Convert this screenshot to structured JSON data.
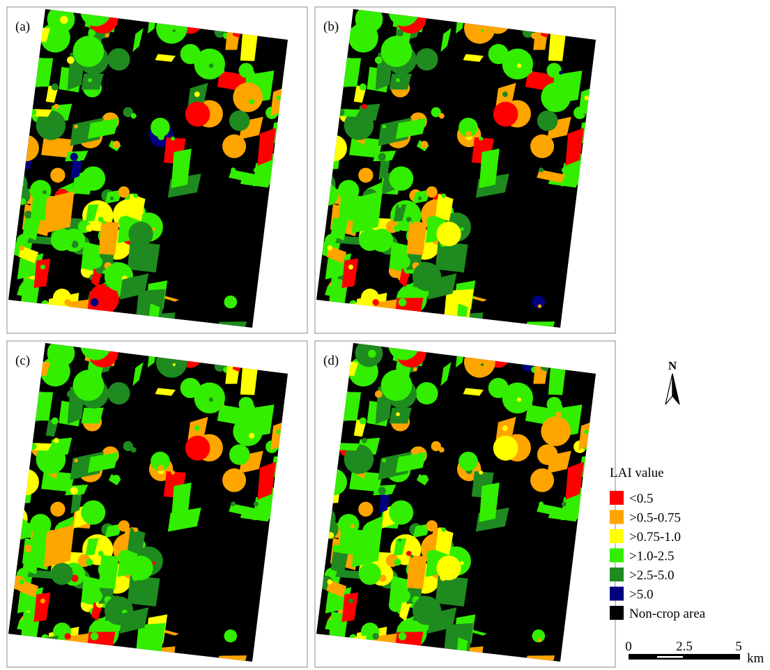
{
  "panels": [
    {
      "label": "(a)"
    },
    {
      "label": "(b)"
    },
    {
      "label": "(c)"
    },
    {
      "label": "(d)"
    }
  ],
  "legend": {
    "title": "LAI value",
    "items": [
      {
        "label": "<0.5",
        "color": "#ff0000"
      },
      {
        "label": ">0.5-0.75",
        "color": "#ffa500"
      },
      {
        "label": ">0.75-1.0",
        "color": "#ffff00"
      },
      {
        "label": ">1.0-2.5",
        "color": "#33ee00"
      },
      {
        "label": ">2.5-5.0",
        "color": "#1f8a1f"
      },
      {
        "label": ">5.0",
        "color": "#000080"
      },
      {
        "label": "Non-crop area",
        "color": "#000000"
      }
    ]
  },
  "north": "N",
  "scale_bar": {
    "ticks": [
      "0",
      "2.5",
      "5"
    ],
    "unit": "km"
  }
}
